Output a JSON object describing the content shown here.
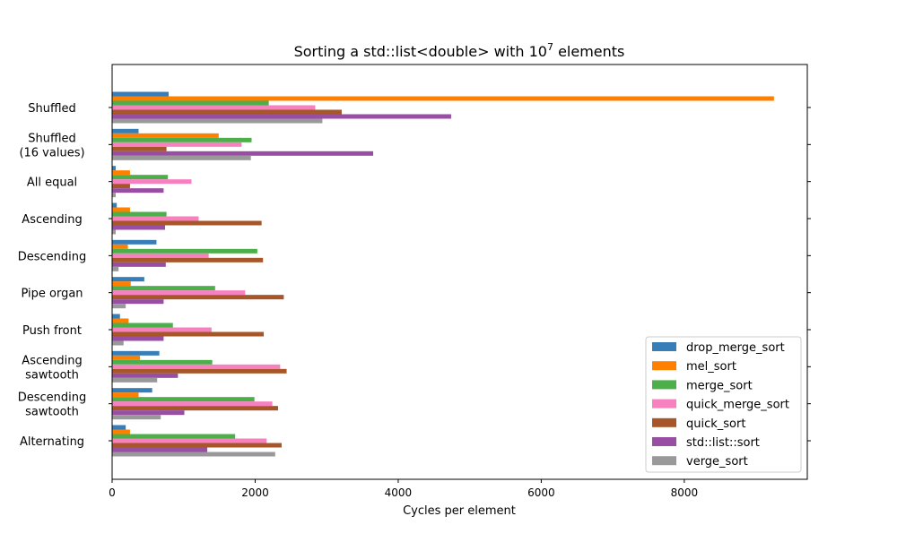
{
  "chart_data": {
    "type": "bar",
    "orientation": "horizontal",
    "title": "Sorting a std::list<double> with 10",
    "title_superscript": "7",
    "title_suffix": " elements",
    "xlabel": "Cycles per element",
    "ylabel": "",
    "xlim": [
      0,
      9720
    ],
    "xticks": [
      0,
      2000,
      4000,
      6000,
      8000
    ],
    "grid": false,
    "legend_position": "lower-right",
    "categories": [
      "Shuffled",
      "Shuffled\n(16 values)",
      "All equal",
      "Ascending",
      "Descending",
      "Pipe organ",
      "Push front",
      "Ascending\nsawtooth",
      "Descending\nsawtooth",
      "Alternating"
    ],
    "series": [
      {
        "name": "drop_merge_sort",
        "color": "#377eb8",
        "values": [
          790,
          370,
          50,
          65,
          620,
          450,
          110,
          660,
          560,
          190
        ]
      },
      {
        "name": "mel_sort",
        "color": "#ff7f00",
        "values": [
          9254,
          1490,
          250,
          250,
          220,
          260,
          230,
          390,
          370,
          250
        ]
      },
      {
        "name": "merge_sort",
        "color": "#4daf4a",
        "values": [
          2190,
          1950,
          780,
          760,
          2030,
          1440,
          850,
          1400,
          1990,
          1720
        ]
      },
      {
        "name": "quick_merge_sort",
        "color": "#f781bf",
        "values": [
          2840,
          1810,
          1110,
          1210,
          1350,
          1860,
          1390,
          2350,
          2240,
          2160
        ]
      },
      {
        "name": "quick_sort",
        "color": "#a65628",
        "values": [
          3210,
          760,
          250,
          2090,
          2110,
          2400,
          2120,
          2440,
          2320,
          2370
        ]
      },
      {
        "name": "std::list::sort",
        "color": "#984ea3",
        "values": [
          4740,
          3650,
          720,
          740,
          750,
          720,
          720,
          920,
          1010,
          1330
        ]
      },
      {
        "name": "verge_sort",
        "color": "#999999",
        "values": [
          2940,
          1940,
          50,
          50,
          90,
          190,
          160,
          630,
          680,
          2280
        ]
      }
    ]
  }
}
